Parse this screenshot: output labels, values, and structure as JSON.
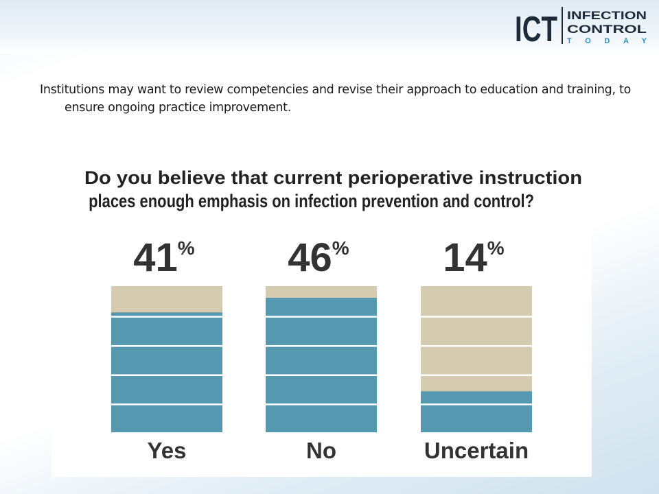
{
  "slide": {
    "text": "Institutions may want to review competencies and revise their approach to education and training, to ensure ongoing practice improvement.",
    "logo": {
      "mark": "ICT",
      "lines": [
        "INFECTION",
        "CONTROL",
        "TODAY"
      ]
    }
  },
  "chart_data": {
    "type": "bar",
    "title": "Do you believe that current perioperative instruction places enough emphasis on infection prevention and control?",
    "categories": [
      "Yes",
      "No",
      "Uncertain"
    ],
    "values": [
      41,
      46,
      14
    ],
    "value_labels": [
      "41%",
      "46%",
      "14%"
    ],
    "color": "#5599b1",
    "background_color": "#d5cbb0",
    "ylim": [
      0,
      50
    ]
  }
}
